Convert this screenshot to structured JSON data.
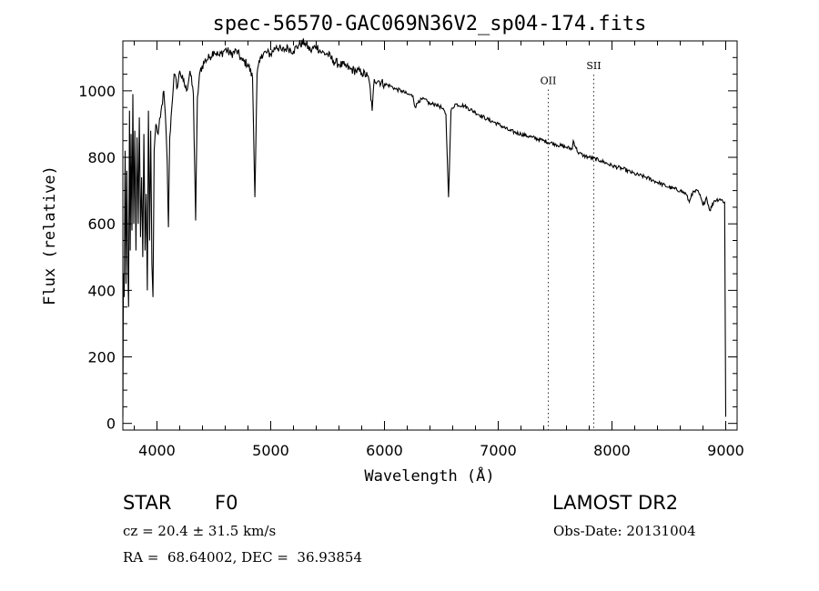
{
  "chart_data": {
    "type": "line",
    "title": "spec-56570-GAC069N36V2_sp04-174.fits",
    "xlabel": "Wavelength (Å)",
    "ylabel": "Flux (relative)",
    "xlim": [
      3700,
      9100
    ],
    "ylim": [
      -20,
      1150
    ],
    "xticks": [
      4000,
      5000,
      6000,
      7000,
      8000,
      9000
    ],
    "yticks": [
      0,
      200,
      400,
      600,
      800,
      1000
    ],
    "grid": false,
    "anchors": [
      [
        3700,
        20
      ],
      [
        3705,
        450
      ],
      [
        3712,
        380
      ],
      [
        3720,
        820
      ],
      [
        3728,
        420
      ],
      [
        3735,
        760
      ],
      [
        3742,
        500
      ],
      [
        3750,
        350
      ],
      [
        3758,
        940
      ],
      [
        3765,
        520
      ],
      [
        3772,
        870
      ],
      [
        3780,
        580
      ],
      [
        3788,
        990
      ],
      [
        3796,
        600
      ],
      [
        3805,
        880
      ],
      [
        3815,
        520
      ],
      [
        3825,
        860
      ],
      [
        3835,
        600
      ],
      [
        3845,
        920
      ],
      [
        3855,
        560
      ],
      [
        3865,
        740
      ],
      [
        3875,
        500
      ],
      [
        3885,
        870
      ],
      [
        3895,
        520
      ],
      [
        3905,
        690
      ],
      [
        3915,
        400
      ],
      [
        3925,
        940
      ],
      [
        3935,
        550
      ],
      [
        3945,
        880
      ],
      [
        3955,
        480
      ],
      [
        3965,
        380
      ],
      [
        3975,
        820
      ],
      [
        3990,
        900
      ],
      [
        4010,
        870
      ],
      [
        4030,
        920
      ],
      [
        4060,
        1000
      ],
      [
        4080,
        880
      ],
      [
        4090,
        780
      ],
      [
        4101,
        590
      ],
      [
        4112,
        860
      ],
      [
        4130,
        950
      ],
      [
        4150,
        1050
      ],
      [
        4180,
        1010
      ],
      [
        4200,
        1060
      ],
      [
        4230,
        1030
      ],
      [
        4260,
        1000
      ],
      [
        4290,
        1060
      ],
      [
        4320,
        990
      ],
      [
        4340,
        610
      ],
      [
        4355,
        980
      ],
      [
        4380,
        1060
      ],
      [
        4420,
        1090
      ],
      [
        4460,
        1100
      ],
      [
        4500,
        1120
      ],
      [
        4550,
        1105
      ],
      [
        4600,
        1125
      ],
      [
        4650,
        1110
      ],
      [
        4700,
        1120
      ],
      [
        4750,
        1090
      ],
      [
        4800,
        1080
      ],
      [
        4840,
        1040
      ],
      [
        4861,
        680
      ],
      [
        4880,
        1050
      ],
      [
        4920,
        1110
      ],
      [
        4960,
        1115
      ],
      [
        5000,
        1110
      ],
      [
        5050,
        1135
      ],
      [
        5100,
        1120
      ],
      [
        5150,
        1130
      ],
      [
        5200,
        1120
      ],
      [
        5250,
        1140
      ],
      [
        5300,
        1145
      ],
      [
        5350,
        1120
      ],
      [
        5400,
        1135
      ],
      [
        5450,
        1115
      ],
      [
        5500,
        1110
      ],
      [
        5550,
        1090
      ],
      [
        5600,
        1080
      ],
      [
        5650,
        1075
      ],
      [
        5700,
        1065
      ],
      [
        5750,
        1060
      ],
      [
        5800,
        1055
      ],
      [
        5850,
        1045
      ],
      [
        5870,
        1020
      ],
      [
        5892,
        940
      ],
      [
        5910,
        1035
      ],
      [
        5950,
        1030
      ],
      [
        6000,
        1020
      ],
      [
        6050,
        1015
      ],
      [
        6100,
        1005
      ],
      [
        6150,
        1000
      ],
      [
        6200,
        990
      ],
      [
        6250,
        985
      ],
      [
        6270,
        950
      ],
      [
        6300,
        970
      ],
      [
        6350,
        975
      ],
      [
        6400,
        960
      ],
      [
        6450,
        960
      ],
      [
        6500,
        950
      ],
      [
        6540,
        930
      ],
      [
        6563,
        680
      ],
      [
        6585,
        940
      ],
      [
        6620,
        960
      ],
      [
        6700,
        955
      ],
      [
        6800,
        935
      ],
      [
        6900,
        915
      ],
      [
        7000,
        900
      ],
      [
        7100,
        880
      ],
      [
        7200,
        870
      ],
      [
        7300,
        860
      ],
      [
        7400,
        850
      ],
      [
        7500,
        840
      ],
      [
        7600,
        830
      ],
      [
        7650,
        825
      ],
      [
        7660,
        850
      ],
      [
        7700,
        815
      ],
      [
        7750,
        805
      ],
      [
        7800,
        800
      ],
      [
        7900,
        790
      ],
      [
        8000,
        775
      ],
      [
        8100,
        765
      ],
      [
        8200,
        750
      ],
      [
        8300,
        740
      ],
      [
        8400,
        725
      ],
      [
        8500,
        710
      ],
      [
        8600,
        700
      ],
      [
        8650,
        690
      ],
      [
        8680,
        665
      ],
      [
        8700,
        690
      ],
      [
        8750,
        700
      ],
      [
        8780,
        680
      ],
      [
        8800,
        655
      ],
      [
        8830,
        680
      ],
      [
        8860,
        640
      ],
      [
        8900,
        670
      ],
      [
        8950,
        675
      ],
      [
        8990,
        665
      ],
      [
        9000,
        20
      ]
    ],
    "annotations": [
      {
        "label": "OII",
        "x": 7440,
        "y": 1020
      },
      {
        "label": "SII",
        "x": 7840,
        "y": 1065
      }
    ]
  },
  "info": {
    "object_class": "STAR",
    "subclass": "F0",
    "survey": "LAMOST DR2",
    "redshift": "cz = 20.4 ± 31.5 km/s",
    "obs_date": "Obs-Date: 20131004",
    "coords": "RA =  68.64002, DEC =  36.93854"
  }
}
